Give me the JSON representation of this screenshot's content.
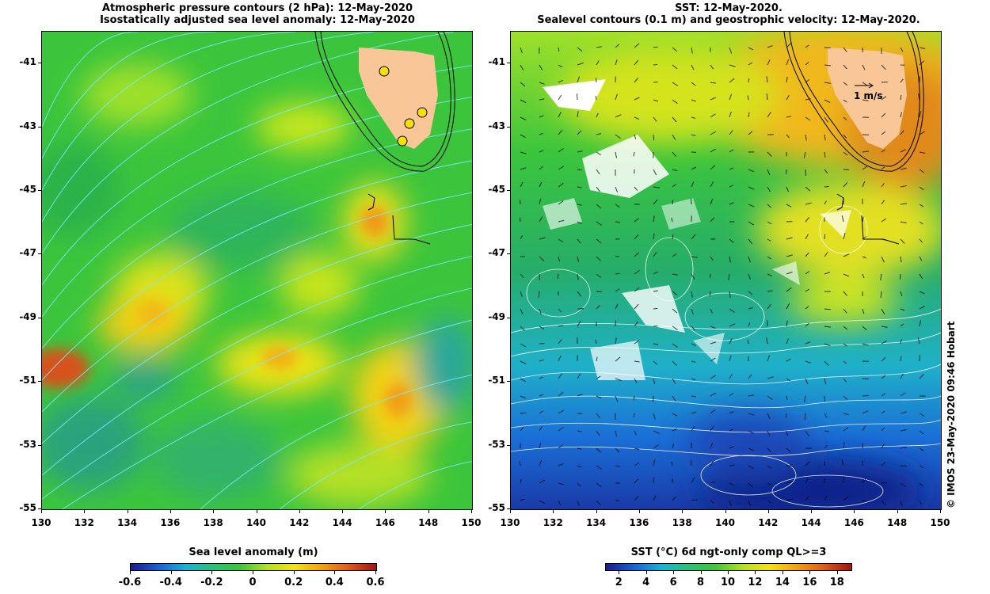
{
  "left_panel": {
    "title_line1": "Atmospheric pressure contours (2 hPa): 12-May-2020",
    "title_line2": "Isostatically adjusted sea level anomaly: 12-May-2020",
    "colorbar": {
      "title": "Sea level anomaly (m)",
      "ticks": [
        "-0.6",
        "-0.4",
        "-0.2",
        "0",
        "0.2",
        "0.4",
        "0.6"
      ],
      "range": [
        -0.6,
        0.6
      ]
    }
  },
  "right_panel": {
    "title_line1": "SST: 12-May-2020.",
    "title_line2": "Sealevel contours (0.1 m) and geostrophic velocity: 12-May-2020.",
    "arrow_scale_label": "1 m/s",
    "colorbar": {
      "title": "SST (°C) 6d ngt-only comp QL>=3",
      "ticks": [
        "2",
        "4",
        "6",
        "8",
        "10",
        "12",
        "14",
        "16",
        "18"
      ],
      "range": [
        1,
        19
      ]
    }
  },
  "axes": {
    "lat_ticks": [
      "-41",
      "-43",
      "-45",
      "-47",
      "-49",
      "-51",
      "-53",
      "-55"
    ],
    "lon_ticks": [
      "130",
      "132",
      "134",
      "136",
      "138",
      "140",
      "142",
      "144",
      "146",
      "148",
      "150"
    ],
    "lat_range": [
      -55,
      -40
    ],
    "lon_range": [
      130,
      150
    ]
  },
  "credit": "© IMOS 23-May-2020 09:46 Hobart",
  "colors": {
    "land": "#f9c797",
    "white_cloud": "#ffffff",
    "pressure_contour": "#7fe7ff",
    "sea_level_contour": "#ffffff"
  }
}
